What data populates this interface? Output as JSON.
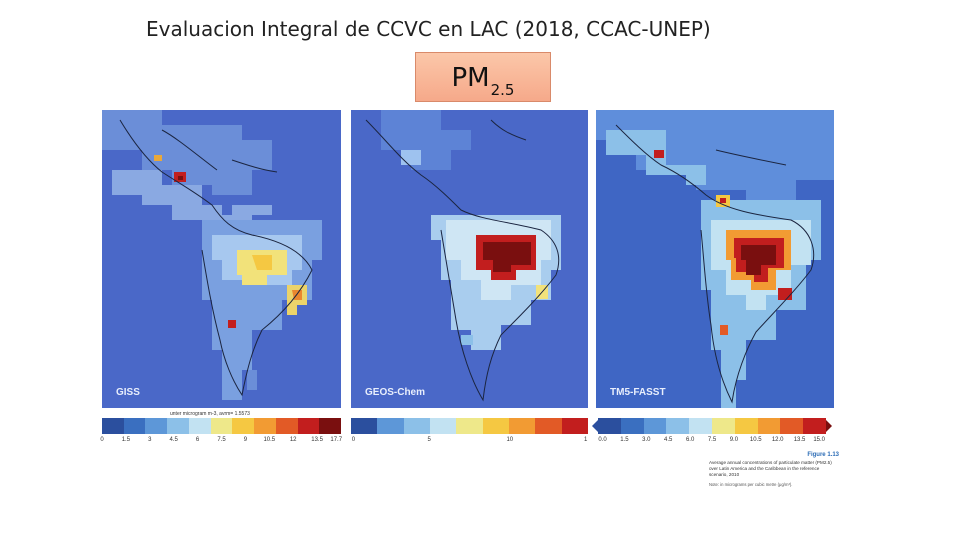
{
  "slide": {
    "title": "Evaluacion Integral de CCVC en LAC (2018, CCAC-UNEP)",
    "pm_label": "PM",
    "pm_subscript": "2.5"
  },
  "panels": [
    {
      "label": "GISS",
      "unit_note": "unter microgram m-3, avrm= 1.5573",
      "ticks": [
        "0",
        "1.5",
        "3",
        "4.5",
        "6",
        "7.5",
        "9",
        "10.5",
        "12",
        "13.5",
        "17.7"
      ]
    },
    {
      "label": "GEOS-Chem",
      "ticks": [
        "0",
        "5",
        "10",
        "1"
      ]
    },
    {
      "label": "TM5-FASST",
      "ticks": [
        "0.0",
        "1.5",
        "3.0",
        "4.5",
        "6.0",
        "7.5",
        "9.0",
        "10.5",
        "12.0",
        "13.5",
        "15.0"
      ]
    }
  ],
  "colors": {
    "scale": [
      "#2b4f9e",
      "#3a6fc0",
      "#5d97d8",
      "#8cc0e8",
      "#c2e2f2",
      "#eee88a",
      "#f5c842",
      "#f29b33",
      "#e25a26",
      "#c21e1e",
      "#7a0f0f"
    ],
    "ocean": "#4a68c8"
  },
  "figure": {
    "number": "Figure 1.13",
    "caption": "Average annual concentrations of particulate matter (PM2.5) over Latin America and the Caribbean in the reference scenario, 2010",
    "note": "Note: in micrograms per cubic metre (μg/m³)."
  }
}
